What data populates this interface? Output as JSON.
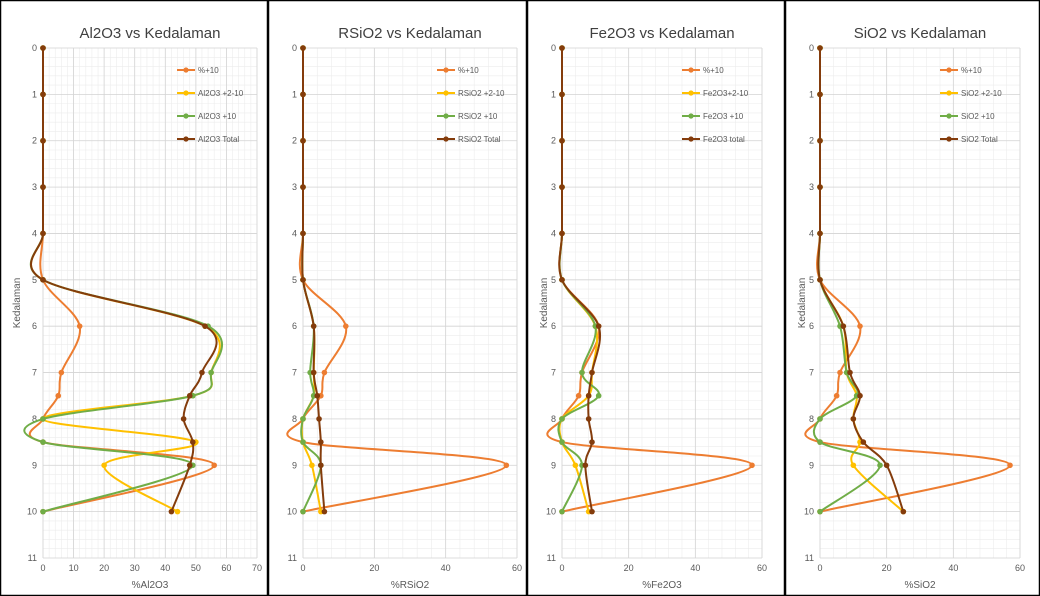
{
  "chart_data": [
    {
      "type": "line",
      "title": "Al2O3 vs Kedalaman",
      "xlabel": "%Al2O3",
      "ylabel": "Kedalaman",
      "xlim": [
        0,
        70
      ],
      "xticks": [
        "0",
        "10",
        "20",
        "30",
        "40",
        "50",
        "60",
        "70"
      ],
      "ylim": [
        0,
        11
      ],
      "yticks": [
        "0",
        "1",
        "2",
        "3",
        "4",
        "5",
        "6",
        "7",
        "8",
        "9",
        "10",
        "11"
      ],
      "y_inverted": true,
      "grid": true,
      "legend_position": "top-right",
      "series": [
        {
          "name": "%+10",
          "color": "#ed7d31",
          "points": [
            [
              0,
              0
            ],
            [
              0,
              1
            ],
            [
              0,
              2
            ],
            [
              0,
              3
            ],
            [
              0,
              4
            ],
            [
              0,
              5
            ],
            [
              12,
              6
            ],
            [
              6,
              7
            ],
            [
              5,
              7.5
            ],
            [
              0,
              8
            ],
            [
              0,
              8.5
            ],
            [
              56,
              9
            ],
            [
              0,
              10
            ]
          ]
        },
        {
          "name": "Al2O3 +2-10",
          "color": "#ffc000",
          "points": [
            [
              0,
              0
            ],
            [
              0,
              1
            ],
            [
              0,
              2
            ],
            [
              0,
              3
            ],
            [
              0,
              4
            ],
            [
              0,
              5
            ],
            [
              53,
              6
            ],
            [
              55,
              7
            ],
            [
              49,
              7.5
            ],
            [
              0,
              8
            ],
            [
              50,
              8.5
            ],
            [
              20,
              9
            ],
            [
              44,
              10
            ]
          ]
        },
        {
          "name": "Al2O3 +10",
          "color": "#70ad47",
          "points": [
            [
              0,
              0
            ],
            [
              0,
              1
            ],
            [
              0,
              2
            ],
            [
              0,
              3
            ],
            [
              0,
              4
            ],
            [
              0,
              5
            ],
            [
              54,
              6
            ],
            [
              55,
              7
            ],
            [
              49,
              7.5
            ],
            [
              0,
              8
            ],
            [
              0,
              8.5
            ],
            [
              49,
              9
            ],
            [
              0,
              10
            ]
          ]
        },
        {
          "name": "Al2O3 Total",
          "color": "#843c0c",
          "points": [
            [
              0,
              0
            ],
            [
              0,
              1
            ],
            [
              0,
              2
            ],
            [
              0,
              3
            ],
            [
              0,
              4
            ],
            [
              0,
              5
            ],
            [
              53,
              6
            ],
            [
              52,
              7
            ],
            [
              48,
              7.5
            ],
            [
              46,
              8
            ],
            [
              49,
              8.5
            ],
            [
              48,
              9
            ],
            [
              42,
              10
            ]
          ]
        }
      ]
    },
    {
      "type": "line",
      "title": "RSiO2 vs Kedalaman",
      "xlabel": "%RSiO2",
      "ylabel": "",
      "xlim": [
        0,
        60
      ],
      "xticks": [
        "0",
        "20",
        "40",
        "60"
      ],
      "ylim": [
        0,
        11
      ],
      "yticks": [
        "0",
        "1",
        "2",
        "3",
        "4",
        "5",
        "6",
        "7",
        "8",
        "9",
        "10",
        "11"
      ],
      "y_inverted": true,
      "grid": true,
      "legend_position": "top-right",
      "series": [
        {
          "name": "%+10",
          "color": "#ed7d31",
          "points": [
            [
              0,
              0
            ],
            [
              0,
              1
            ],
            [
              0,
              2
            ],
            [
              0,
              3
            ],
            [
              0,
              4
            ],
            [
              0,
              5
            ],
            [
              12,
              6
            ],
            [
              6,
              7
            ],
            [
              5,
              7.5
            ],
            [
              0,
              8
            ],
            [
              0,
              8.5
            ],
            [
              57,
              9
            ],
            [
              0,
              10
            ]
          ]
        },
        {
          "name": "RSiO2 +2-10",
          "color": "#ffc000",
          "points": [
            [
              0,
              0
            ],
            [
              0,
              1
            ],
            [
              0,
              2
            ],
            [
              0,
              3
            ],
            [
              0,
              4
            ],
            [
              0,
              5
            ],
            [
              3,
              6
            ],
            [
              3,
              7
            ],
            [
              3,
              7.5
            ],
            [
              0,
              8
            ],
            [
              0,
              8.5
            ],
            [
              2.5,
              9
            ],
            [
              5,
              10
            ]
          ]
        },
        {
          "name": "RSiO2 +10",
          "color": "#70ad47",
          "points": [
            [
              0,
              0
            ],
            [
              0,
              1
            ],
            [
              0,
              2
            ],
            [
              0,
              3
            ],
            [
              0,
              4
            ],
            [
              0,
              5
            ],
            [
              3,
              6
            ],
            [
              2,
              7
            ],
            [
              3,
              7.5
            ],
            [
              0,
              8
            ],
            [
              0,
              8.5
            ],
            [
              5,
              9
            ],
            [
              0,
              10
            ]
          ]
        },
        {
          "name": "RSiO2 Total",
          "color": "#843c0c",
          "points": [
            [
              0,
              0
            ],
            [
              0,
              1
            ],
            [
              0,
              2
            ],
            [
              0,
              3
            ],
            [
              0,
              4
            ],
            [
              0,
              5
            ],
            [
              3,
              6
            ],
            [
              3,
              7
            ],
            [
              4,
              7.5
            ],
            [
              4.5,
              8
            ],
            [
              5,
              8.5
            ],
            [
              5,
              9
            ],
            [
              6,
              10
            ]
          ]
        }
      ]
    },
    {
      "type": "line",
      "title": "Fe2O3 vs Kedalaman",
      "xlabel": "%Fe2O3",
      "ylabel": "Kedalaman",
      "xlim": [
        0,
        60
      ],
      "xticks": [
        "0",
        "20",
        "40",
        "60"
      ],
      "ylim": [
        0,
        11
      ],
      "yticks": [
        "0",
        "1",
        "2",
        "3",
        "4",
        "5",
        "6",
        "7",
        "8",
        "9",
        "10",
        "11"
      ],
      "y_inverted": true,
      "grid": true,
      "legend_position": "top-right",
      "series": [
        {
          "name": "%+10",
          "color": "#ed7d31",
          "points": [
            [
              0,
              0
            ],
            [
              0,
              1
            ],
            [
              0,
              2
            ],
            [
              0,
              3
            ],
            [
              0,
              4
            ],
            [
              0,
              5
            ],
            [
              11,
              6
            ],
            [
              6,
              7
            ],
            [
              5,
              7.5
            ],
            [
              0,
              8
            ],
            [
              0,
              8.5
            ],
            [
              57,
              9
            ],
            [
              0,
              10
            ]
          ]
        },
        {
          "name": "Fe2O3+2-10",
          "color": "#ffc000",
          "points": [
            [
              0,
              0
            ],
            [
              0,
              1
            ],
            [
              0,
              2
            ],
            [
              0,
              3
            ],
            [
              0,
              4
            ],
            [
              0,
              5
            ],
            [
              10,
              6
            ],
            [
              9,
              7
            ],
            [
              8,
              7.5
            ],
            [
              0,
              8
            ],
            [
              0,
              8.5
            ],
            [
              4,
              9
            ],
            [
              8,
              10
            ]
          ]
        },
        {
          "name": "Fe2O3 +10",
          "color": "#70ad47",
          "points": [
            [
              0,
              0
            ],
            [
              0,
              1
            ],
            [
              0,
              2
            ],
            [
              0,
              3
            ],
            [
              0,
              4
            ],
            [
              0,
              5
            ],
            [
              10,
              6
            ],
            [
              6,
              7
            ],
            [
              11,
              7.5
            ],
            [
              0,
              8
            ],
            [
              0,
              8.5
            ],
            [
              6,
              9
            ],
            [
              0,
              10
            ]
          ]
        },
        {
          "name": "Fe2O3 total",
          "color": "#843c0c",
          "points": [
            [
              0,
              0
            ],
            [
              0,
              1
            ],
            [
              0,
              2
            ],
            [
              0,
              3
            ],
            [
              0,
              4
            ],
            [
              0,
              5
            ],
            [
              11,
              6
            ],
            [
              9,
              7
            ],
            [
              8,
              7.5
            ],
            [
              8,
              8
            ],
            [
              9,
              8.5
            ],
            [
              7,
              9
            ],
            [
              9,
              10
            ]
          ]
        }
      ]
    },
    {
      "type": "line",
      "title": "SiO2 vs Kedalaman",
      "xlabel": "%SiO2",
      "ylabel": "Kedalaman",
      "xlim": [
        0,
        60
      ],
      "xticks": [
        "0",
        "20",
        "40",
        "60"
      ],
      "ylim": [
        0,
        11
      ],
      "yticks": [
        "0",
        "1",
        "2",
        "3",
        "4",
        "5",
        "6",
        "7",
        "8",
        "9",
        "10",
        "11"
      ],
      "y_inverted": true,
      "grid": true,
      "legend_position": "top-right",
      "series": [
        {
          "name": "%+10",
          "color": "#ed7d31",
          "points": [
            [
              0,
              0
            ],
            [
              0,
              1
            ],
            [
              0,
              2
            ],
            [
              0,
              3
            ],
            [
              0,
              4
            ],
            [
              0,
              5
            ],
            [
              12,
              6
            ],
            [
              6,
              7
            ],
            [
              5,
              7.5
            ],
            [
              0,
              8
            ],
            [
              0,
              8.5
            ],
            [
              57,
              9
            ],
            [
              0,
              10
            ]
          ]
        },
        {
          "name": "SiO2 +2-10",
          "color": "#ffc000",
          "points": [
            [
              0,
              0
            ],
            [
              0,
              1
            ],
            [
              0,
              2
            ],
            [
              0,
              3
            ],
            [
              0,
              4
            ],
            [
              0,
              5
            ],
            [
              7,
              6
            ],
            [
              8,
              7
            ],
            [
              11,
              7.5
            ],
            [
              10,
              8
            ],
            [
              12,
              8.5
            ],
            [
              10,
              9
            ],
            [
              25,
              10
            ]
          ]
        },
        {
          "name": "SiO2 +10",
          "color": "#70ad47",
          "points": [
            [
              0,
              0
            ],
            [
              0,
              1
            ],
            [
              0,
              2
            ],
            [
              0,
              3
            ],
            [
              0,
              4
            ],
            [
              0,
              5
            ],
            [
              6,
              6
            ],
            [
              8,
              7
            ],
            [
              11,
              7.5
            ],
            [
              0,
              8
            ],
            [
              0,
              8.5
            ],
            [
              18,
              9
            ],
            [
              0,
              10
            ]
          ]
        },
        {
          "name": "SiO2 Total",
          "color": "#843c0c",
          "points": [
            [
              0,
              0
            ],
            [
              0,
              1
            ],
            [
              0,
              2
            ],
            [
              0,
              3
            ],
            [
              0,
              4
            ],
            [
              0,
              5
            ],
            [
              7,
              6
            ],
            [
              9,
              7
            ],
            [
              12,
              7.5
            ],
            [
              10,
              8
            ],
            [
              13,
              8.5
            ],
            [
              20,
              9
            ],
            [
              25,
              10
            ]
          ]
        }
      ]
    }
  ]
}
